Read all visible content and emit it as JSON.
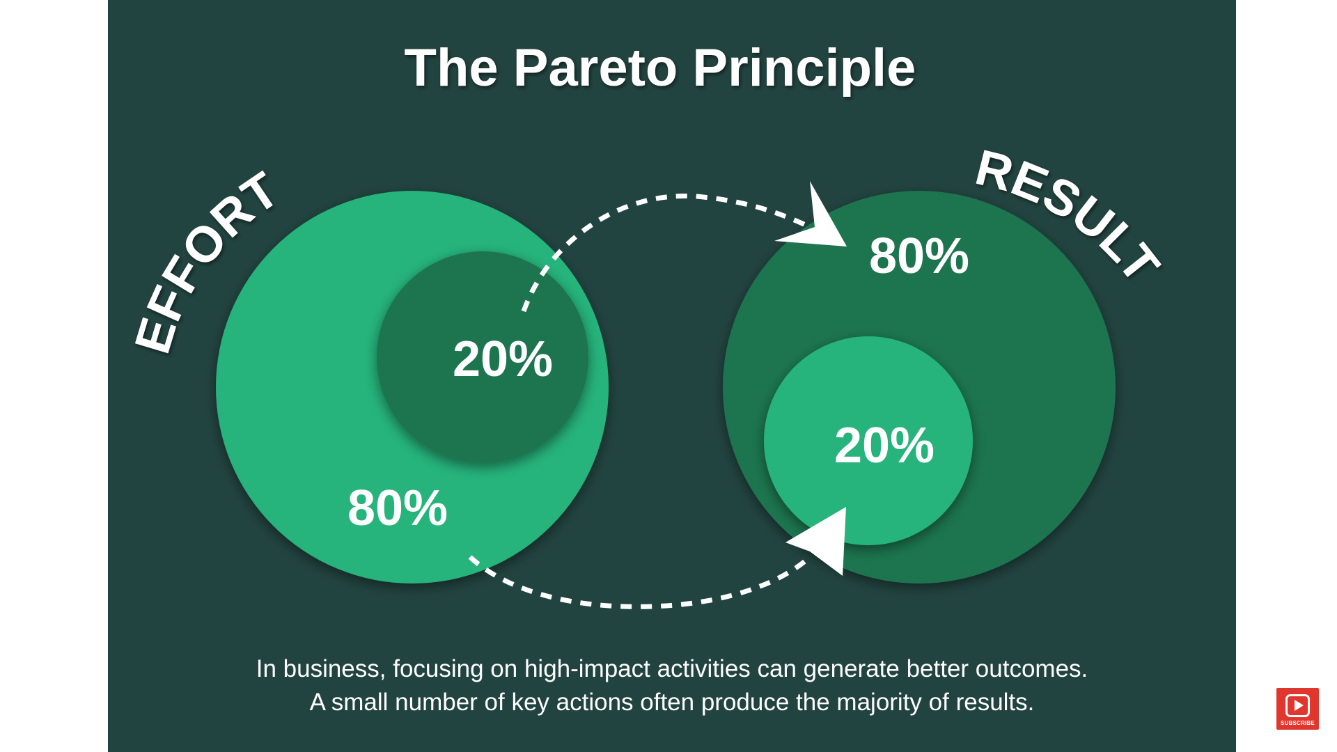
{
  "title": "The Pareto Principle",
  "effort": {
    "label": "EFFORT",
    "large_share": "80%",
    "small_share": "20%"
  },
  "result": {
    "label": "RESULT",
    "large_share": "80%",
    "small_share": "20%"
  },
  "caption": {
    "line1": "In business, focusing on high-impact activities can generate better outcomes.",
    "line2": "A small number of key actions often produce the majority of results."
  },
  "subscribe": {
    "label": "SUBSCRIBE",
    "icon": "youtube-play-icon"
  },
  "colors": {
    "page_background": "#ffffff",
    "panel_background": "#224440",
    "light_green": "#27b37c",
    "dark_green": "#1e7550",
    "text": "#ffffff",
    "subscribe_red": "#e0362e"
  }
}
